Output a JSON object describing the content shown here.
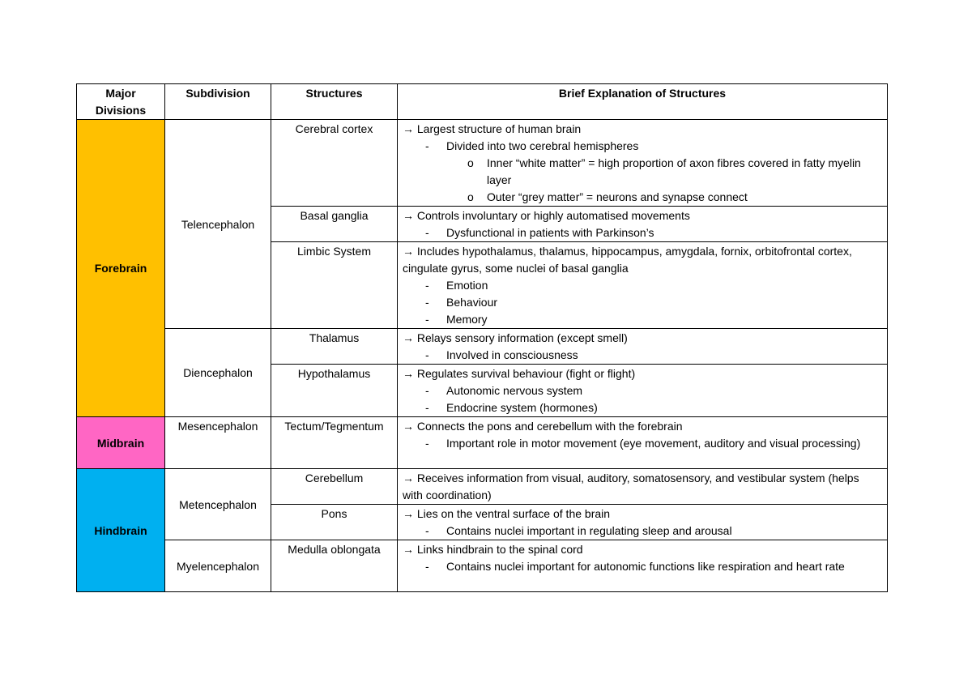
{
  "headers": [
    "Major Divisions",
    "Subdivision",
    "Structures",
    "Brief Explanation of Structures"
  ],
  "colors": {
    "forebrain": "#FFC000",
    "midbrain": "#FF66C4",
    "hindbrain": "#00B0F0"
  },
  "divisions": [
    {
      "name": "Forebrain",
      "color_key": "forebrain",
      "subdivisions": [
        {
          "name": "Telencephalon",
          "structures": [
            {
              "name": "Cerebral cortex",
              "lines": [
                {
                  "level": 0,
                  "marker": "→",
                  "text": "Largest structure of human brain"
                },
                {
                  "level": 1,
                  "marker": "-",
                  "text": "Divided into two cerebral hemispheres"
                },
                {
                  "level": 2,
                  "marker": "o",
                  "text": "Inner “white matter” = high proportion of axon fibres covered in fatty myelin layer"
                },
                {
                  "level": 2,
                  "marker": "o",
                  "text": "Outer “grey matter” = neurons and synapse connect"
                }
              ]
            },
            {
              "name": "Basal ganglia",
              "lines": [
                {
                  "level": 0,
                  "marker": "→",
                  "text": "Controls involuntary or highly automatised movements"
                },
                {
                  "level": 1,
                  "marker": "-",
                  "text": "Dysfunctional in patients with Parkinson’s"
                }
              ]
            },
            {
              "name": "Limbic System",
              "lines": [
                {
                  "level": 0,
                  "marker": "→",
                  "text": "Includes hypothalamus, thalamus, hippocampus, amygdala, fornix, orbitofrontal cortex, cingulate gyrus, some nuclei of basal ganglia"
                },
                {
                  "level": 1,
                  "marker": "-",
                  "text": "Emotion"
                },
                {
                  "level": 1,
                  "marker": "-",
                  "text": "Behaviour"
                },
                {
                  "level": 1,
                  "marker": "-",
                  "text": "Memory"
                }
              ]
            }
          ]
        },
        {
          "name": "Diencephalon",
          "structures": [
            {
              "name": "Thalamus",
              "lines": [
                {
                  "level": 0,
                  "marker": "→",
                  "text": "Relays sensory information (except smell)"
                },
                {
                  "level": 1,
                  "marker": "-",
                  "text": "Involved in consciousness"
                }
              ]
            },
            {
              "name": "Hypothalamus",
              "lines": [
                {
                  "level": 0,
                  "marker": "→",
                  "text": "Regulates survival behaviour (fight or flight)"
                },
                {
                  "level": 1,
                  "marker": "-",
                  "text": "Autonomic nervous system"
                },
                {
                  "level": 1,
                  "marker": "-",
                  "text": "Endocrine system (hormones)"
                }
              ]
            }
          ]
        }
      ]
    },
    {
      "name": "Midbrain",
      "color_key": "midbrain",
      "subdivisions": [
        {
          "name": "Mesencephalon",
          "top": true,
          "structures": [
            {
              "name": "Tectum/Tegmentum",
              "lines": [
                {
                  "level": 0,
                  "marker": "→",
                  "text": "Connects the pons and cerebellum with the forebrain"
                },
                {
                  "level": 1,
                  "marker": "-",
                  "text": "Important role in motor movement (eye movement, auditory and visual processing)"
                }
              ]
            }
          ]
        }
      ]
    },
    {
      "name": "Hindbrain",
      "color_key": "hindbrain",
      "subdivisions": [
        {
          "name": "Metencephalon",
          "structures": [
            {
              "name": "Cerebellum",
              "lines": [
                {
                  "level": 0,
                  "marker": "→",
                  "text": "Receives information from visual, auditory, somatosensory, and vestibular system (helps with coordination)"
                }
              ]
            },
            {
              "name": "Pons",
              "lines": [
                {
                  "level": 0,
                  "marker": "→",
                  "text": "Lies on the ventral surface of the brain"
                },
                {
                  "level": 1,
                  "marker": "-",
                  "text": "Contains nuclei important in regulating sleep and arousal"
                }
              ]
            }
          ]
        },
        {
          "name": "Myelencephalon",
          "structures": [
            {
              "name": "Medulla oblongata",
              "lines": [
                {
                  "level": 0,
                  "marker": "→",
                  "text": "Links hindbrain to the spinal cord"
                },
                {
                  "level": 1,
                  "marker": "-",
                  "text": "Contains nuclei important for autonomic functions like respiration and heart rate"
                }
              ]
            }
          ]
        }
      ]
    }
  ]
}
